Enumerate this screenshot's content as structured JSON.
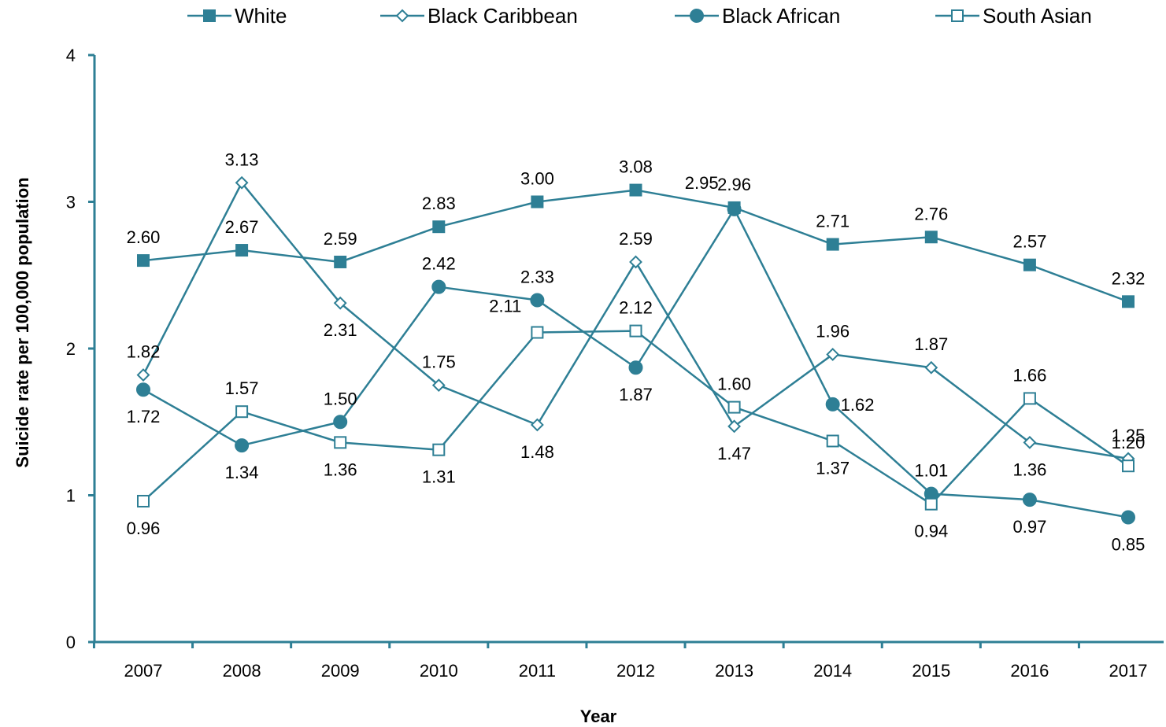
{
  "chart_data": {
    "type": "line",
    "title": "",
    "xlabel": "Year",
    "ylabel": "Suicide rate per 100,000 population",
    "categories": [
      "2007",
      "2008",
      "2009",
      "2010",
      "2011",
      "2012",
      "2013",
      "2014",
      "2015",
      "2016",
      "2017"
    ],
    "ylim": [
      0,
      4
    ],
    "yticks": [
      "0",
      "1",
      "2",
      "3",
      "4"
    ],
    "grid": false,
    "legend_position": "top",
    "color": "#2e7f95",
    "series": [
      {
        "name": "White",
        "marker": "square-filled",
        "values": [
          2.6,
          2.67,
          2.59,
          2.83,
          3.0,
          3.08,
          2.96,
          2.71,
          2.76,
          2.57,
          2.32
        ],
        "labels": [
          "2.60",
          "2.67",
          "2.59",
          "2.83",
          "3.00",
          "3.08",
          "2.96",
          "2.71",
          "2.76",
          "2.57",
          "2.32"
        ]
      },
      {
        "name": "Black Caribbean",
        "marker": "diamond-open",
        "values": [
          1.82,
          3.13,
          2.31,
          1.75,
          1.48,
          2.59,
          1.47,
          1.96,
          1.87,
          1.36,
          1.25
        ],
        "labels": [
          "1.82",
          "3.13",
          "2.31",
          "1.75",
          "1.48",
          "2.59",
          "1.47",
          "1.96",
          "1.87",
          "1.36",
          "1.25"
        ]
      },
      {
        "name": "Black African",
        "marker": "circle-filled",
        "values": [
          1.72,
          1.34,
          1.5,
          2.42,
          2.33,
          1.87,
          2.95,
          1.62,
          1.01,
          0.97,
          0.85
        ],
        "labels": [
          "1.72",
          "1.34",
          "1.50",
          "2.42",
          "2.33",
          "1.87",
          "2.95",
          "1.62",
          "1.01",
          "0.97",
          "0.85"
        ]
      },
      {
        "name": "South Asian",
        "marker": "square-open",
        "values": [
          0.96,
          1.57,
          1.36,
          1.31,
          2.11,
          2.12,
          1.6,
          1.37,
          0.94,
          1.66,
          1.2
        ],
        "labels": [
          "0.96",
          "1.57",
          "1.36",
          "1.31",
          "2.11",
          "2.12",
          "1.60",
          "1.37",
          "0.94",
          "1.66",
          "1.20"
        ]
      }
    ]
  }
}
